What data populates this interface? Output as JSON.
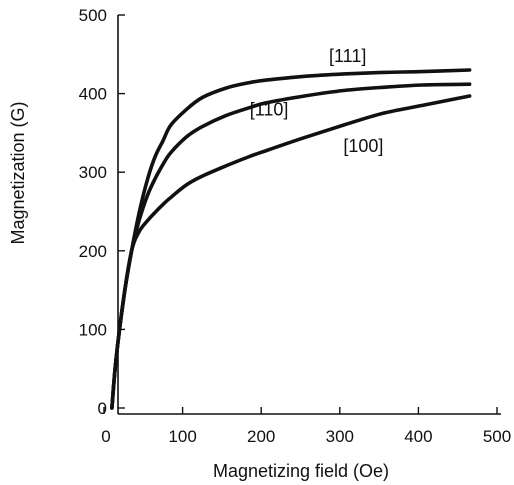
{
  "chart_data": {
    "type": "line",
    "title": "",
    "xlabel": "Magnetizing field (Oe)",
    "ylabel": "Magnetization (G)",
    "xlim": [
      0,
      500
    ],
    "ylim": [
      0,
      500
    ],
    "xticks": [
      "0",
      "100",
      "200",
      "300",
      "400",
      "500"
    ],
    "yticks": [
      "0",
      "100",
      "200",
      "300",
      "400",
      "500"
    ],
    "grid": false,
    "legend": "none",
    "series": [
      {
        "name": "[111]",
        "x": [
          5,
          10,
          20,
          30,
          40,
          50,
          60,
          70,
          80,
          100,
          120,
          150,
          180,
          200,
          250,
          300,
          350,
          400,
          460
        ],
        "y": [
          0,
          60,
          140,
          200,
          250,
          290,
          320,
          340,
          360,
          380,
          395,
          407,
          414,
          417,
          422,
          425,
          427,
          428,
          430
        ]
      },
      {
        "name": "[110]",
        "x": [
          5,
          10,
          20,
          30,
          40,
          50,
          60,
          70,
          80,
          100,
          120,
          150,
          180,
          200,
          250,
          300,
          350,
          400,
          460
        ],
        "y": [
          0,
          60,
          140,
          200,
          240,
          270,
          292,
          310,
          325,
          345,
          358,
          372,
          382,
          388,
          397,
          404,
          408,
          411,
          412
        ]
      },
      {
        "name": "[100]",
        "x": [
          5,
          10,
          20,
          30,
          40,
          50,
          60,
          70,
          80,
          100,
          120,
          150,
          180,
          200,
          250,
          300,
          350,
          400,
          460
        ],
        "y": [
          0,
          60,
          140,
          200,
          225,
          238,
          249,
          259,
          268,
          284,
          295,
          308,
          320,
          327,
          344,
          360,
          375,
          385,
          397
        ]
      }
    ],
    "series_labels": [
      {
        "text": "[111]",
        "x": 310,
        "y": 440
      },
      {
        "text": "[110]",
        "x": 210,
        "y": 372
      },
      {
        "text": "[100]",
        "x": 330,
        "y": 326
      }
    ]
  }
}
